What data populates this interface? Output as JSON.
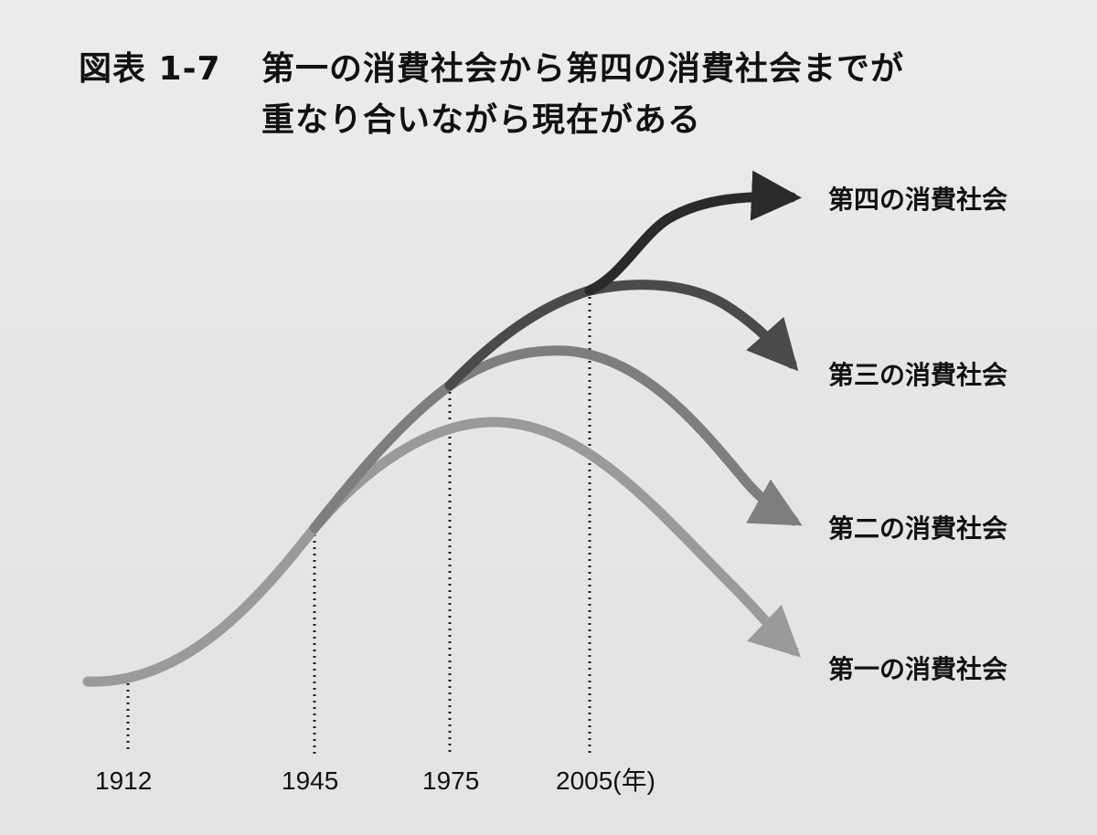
{
  "figure": {
    "label": "図表 1-7",
    "title_line1": "第一の消費社会から第四の消費社会までが",
    "title_line2": "重なり合いながら現在がある"
  },
  "series": [
    {
      "name": "第一の消費社会",
      "color": "#9a9a9a"
    },
    {
      "name": "第二の消費社会",
      "color": "#7e7e7e"
    },
    {
      "name": "第三の消費社会",
      "color": "#4a4a4a"
    },
    {
      "name": "第四の消費社会",
      "color": "#2a2a2a"
    }
  ],
  "years": [
    "1912",
    "1945",
    "1975",
    "2005(年)"
  ]
}
